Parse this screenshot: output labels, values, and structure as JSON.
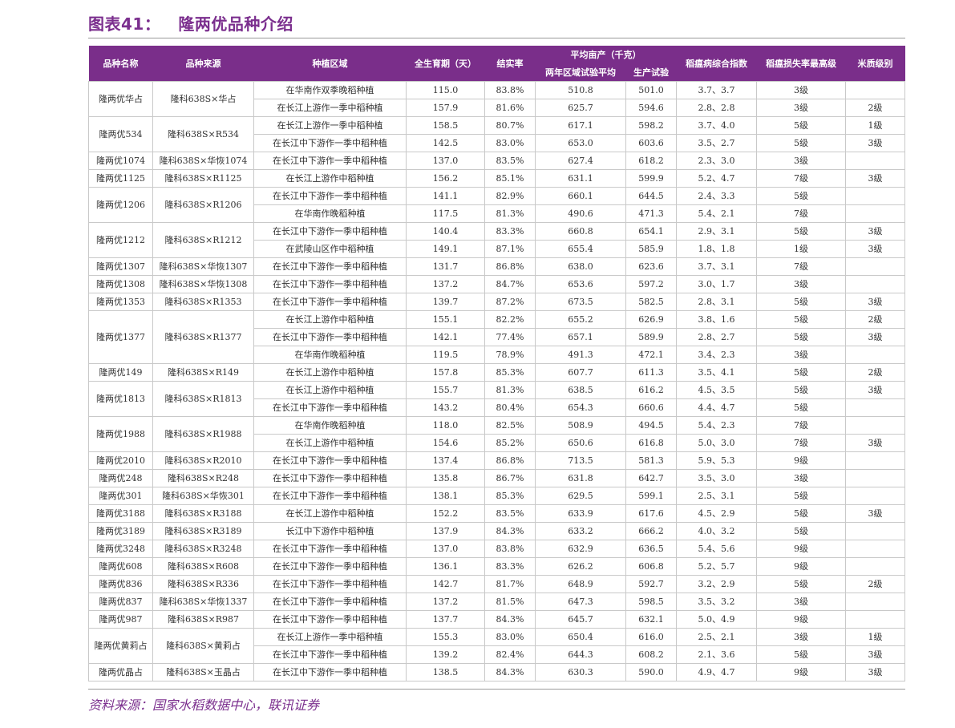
{
  "title": {
    "label": "图表41：",
    "text": "隆两优品种介绍"
  },
  "table": {
    "headers": {
      "variety": "品种名称",
      "origin": "品种来源",
      "region": "种植区域",
      "duration": "全生育期（天）",
      "seed_set": "结实率",
      "yield_group": "平均亩产（千克）",
      "yield_regional": "两年区域试验平均",
      "yield_production": "生产试验",
      "blast_index": "稻瘟病综合指数",
      "blast_loss": "稻瘟损失率最高级",
      "quality": "米质级别"
    },
    "groups": [
      {
        "variety": "隆两优华占",
        "origin": "隆科638S×华占",
        "rows": [
          {
            "region": "在华南作双季晚稻种植",
            "duration": "115.0",
            "seed_set": "83.8%",
            "yield_regional": "510.8",
            "yield_production": "501.0",
            "blast_index": "3.7、3.7",
            "blast_loss": "3级",
            "quality": ""
          },
          {
            "region": "在长江上游作一季中稻种植",
            "duration": "157.9",
            "seed_set": "81.6%",
            "yield_regional": "625.7",
            "yield_production": "594.6",
            "blast_index": "2.8、2.8",
            "blast_loss": "3级",
            "quality": "2级"
          }
        ]
      },
      {
        "variety": "隆两优534",
        "origin": "隆科638S×R534",
        "rows": [
          {
            "region": "在长江上游作一季中稻种植",
            "duration": "158.5",
            "seed_set": "80.7%",
            "yield_regional": "617.1",
            "yield_production": "598.2",
            "blast_index": "3.7、4.0",
            "blast_loss": "5级",
            "quality": "1级"
          },
          {
            "region": "在长江中下游作一季中稻种植",
            "duration": "142.5",
            "seed_set": "83.0%",
            "yield_regional": "653.0",
            "yield_production": "603.6",
            "blast_index": "3.5、2.7",
            "blast_loss": "5级",
            "quality": "3级"
          }
        ]
      },
      {
        "variety": "隆两优1074",
        "origin": "隆科638S×华恢1074",
        "rows": [
          {
            "region": "在长江中下游作一季中稻种植",
            "duration": "137.0",
            "seed_set": "83.5%",
            "yield_regional": "627.4",
            "yield_production": "618.2",
            "blast_index": "2.3、3.0",
            "blast_loss": "3级",
            "quality": ""
          }
        ]
      },
      {
        "variety": "隆两优1125",
        "origin": "隆科638S×R1125",
        "rows": [
          {
            "region": "在长江上游作中稻种植",
            "duration": "156.2",
            "seed_set": "85.1%",
            "yield_regional": "631.1",
            "yield_production": "599.9",
            "blast_index": "5.2、4.7",
            "blast_loss": "7级",
            "quality": "3级"
          }
        ]
      },
      {
        "variety": "隆两优1206",
        "origin": "隆科638S×R1206",
        "rows": [
          {
            "region": "在长江中下游作一季中稻种植",
            "duration": "141.1",
            "seed_set": "82.9%",
            "yield_regional": "660.1",
            "yield_production": "644.5",
            "blast_index": "2.4、3.3",
            "blast_loss": "5级",
            "quality": ""
          },
          {
            "region": "在华南作晚稻种植",
            "duration": "117.5",
            "seed_set": "81.3%",
            "yield_regional": "490.6",
            "yield_production": "471.3",
            "blast_index": "5.4、2.1",
            "blast_loss": "7级",
            "quality": ""
          }
        ]
      },
      {
        "variety": "隆两优1212",
        "origin": "隆科638S×R1212",
        "rows": [
          {
            "region": "在长江中下游作一季中稻种植",
            "duration": "140.4",
            "seed_set": "83.3%",
            "yield_regional": "660.8",
            "yield_production": "654.1",
            "blast_index": "2.9、3.1",
            "blast_loss": "5级",
            "quality": "3级"
          },
          {
            "region": "在武陵山区作中稻种植",
            "duration": "149.1",
            "seed_set": "87.1%",
            "yield_regional": "655.4",
            "yield_production": "585.9",
            "blast_index": "1.8、1.8",
            "blast_loss": "1级",
            "quality": "3级"
          }
        ]
      },
      {
        "variety": "隆两优1307",
        "origin": "隆科638S×华恢1307",
        "rows": [
          {
            "region": "在长江中下游作一季中稻种植",
            "duration": "131.7",
            "seed_set": "86.8%",
            "yield_regional": "638.0",
            "yield_production": "623.6",
            "blast_index": "3.7、3.1",
            "blast_loss": "7级",
            "quality": ""
          }
        ]
      },
      {
        "variety": "隆两优1308",
        "origin": "隆科638S×华恢1308",
        "rows": [
          {
            "region": "在长江中下游作一季中稻种植",
            "duration": "137.2",
            "seed_set": "84.7%",
            "yield_regional": "653.6",
            "yield_production": "597.2",
            "blast_index": "3.0、1.7",
            "blast_loss": "3级",
            "quality": ""
          }
        ]
      },
      {
        "variety": "隆两优1353",
        "origin": "隆科638S×R1353",
        "rows": [
          {
            "region": "在长江中下游作一季中稻种植",
            "duration": "139.7",
            "seed_set": "87.2%",
            "yield_regional": "673.5",
            "yield_production": "582.5",
            "blast_index": "2.8、3.1",
            "blast_loss": "5级",
            "quality": "3级"
          }
        ]
      },
      {
        "variety": "隆两优1377",
        "origin": "隆科638S×R1377",
        "rows": [
          {
            "region": "在长江上游作中稻种植",
            "duration": "155.1",
            "seed_set": "82.2%",
            "yield_regional": "655.2",
            "yield_production": "626.9",
            "blast_index": "3.8、1.6",
            "blast_loss": "5级",
            "quality": "2级"
          },
          {
            "region": "在长江中下游作一季中稻种植",
            "duration": "142.1",
            "seed_set": "77.4%",
            "yield_regional": "657.1",
            "yield_production": "589.9",
            "blast_index": "2.8、2.7",
            "blast_loss": "5级",
            "quality": "3级"
          },
          {
            "region": "在华南作晚稻种植",
            "duration": "119.5",
            "seed_set": "78.9%",
            "yield_regional": "491.3",
            "yield_production": "472.1",
            "blast_index": "3.4、2.3",
            "blast_loss": "3级",
            "quality": ""
          }
        ]
      },
      {
        "variety": "隆两优149",
        "origin": "隆科638S×R149",
        "rows": [
          {
            "region": "在长江上游作中稻种植",
            "duration": "157.8",
            "seed_set": "85.3%",
            "yield_regional": "607.7",
            "yield_production": "611.3",
            "blast_index": "3.5、4.1",
            "blast_loss": "5级",
            "quality": "2级"
          }
        ]
      },
      {
        "variety": "隆两优1813",
        "origin": "隆科638S×R1813",
        "rows": [
          {
            "region": "在长江上游作中稻种植",
            "duration": "155.7",
            "seed_set": "81.3%",
            "yield_regional": "638.5",
            "yield_production": "616.2",
            "blast_index": "4.5、3.5",
            "blast_loss": "5级",
            "quality": "3级"
          },
          {
            "region": "在长江中下游作一季中稻种植",
            "duration": "143.2",
            "seed_set": "80.4%",
            "yield_regional": "654.3",
            "yield_production": "660.6",
            "blast_index": "4.4、4.7",
            "blast_loss": "5级",
            "quality": ""
          }
        ]
      },
      {
        "variety": "隆两优1988",
        "origin": "隆科638S×R1988",
        "rows": [
          {
            "region": "在华南作晚稻种植",
            "duration": "118.0",
            "seed_set": "82.5%",
            "yield_regional": "508.9",
            "yield_production": "494.5",
            "blast_index": "5.4、2.3",
            "blast_loss": "7级",
            "quality": ""
          },
          {
            "region": "在长江上游作中稻种植",
            "duration": "154.6",
            "seed_set": "85.2%",
            "yield_regional": "650.6",
            "yield_production": "616.8",
            "blast_index": "5.0、3.0",
            "blast_loss": "7级",
            "quality": "3级"
          }
        ]
      },
      {
        "variety": "隆两优2010",
        "origin": "隆科638S×R2010",
        "rows": [
          {
            "region": "在长江中下游作一季中稻种植",
            "duration": "137.4",
            "seed_set": "86.8%",
            "yield_regional": "713.5",
            "yield_production": "581.3",
            "blast_index": "5.9、5.3",
            "blast_loss": "9级",
            "quality": ""
          }
        ]
      },
      {
        "variety": "隆两优248",
        "origin": "隆科638S×R248",
        "rows": [
          {
            "region": "在长江中下游作一季中稻种植",
            "duration": "135.8",
            "seed_set": "86.7%",
            "yield_regional": "631.8",
            "yield_production": "642.7",
            "blast_index": "3.5、3.0",
            "blast_loss": "3级",
            "quality": ""
          }
        ]
      },
      {
        "variety": "隆两优301",
        "origin": "隆科638S×华恢301",
        "rows": [
          {
            "region": "在长江中下游作一季中稻种植",
            "duration": "138.1",
            "seed_set": "85.3%",
            "yield_regional": "629.5",
            "yield_production": "599.1",
            "blast_index": "2.5、3.1",
            "blast_loss": "5级",
            "quality": ""
          }
        ]
      },
      {
        "variety": "隆两优3188",
        "origin": "隆科638S×R3188",
        "rows": [
          {
            "region": "在长江上游作中稻种植",
            "duration": "152.2",
            "seed_set": "83.5%",
            "yield_regional": "633.9",
            "yield_production": "617.6",
            "blast_index": "4.5、2.9",
            "blast_loss": "5级",
            "quality": "3级"
          }
        ]
      },
      {
        "variety": "隆两优3189",
        "origin": "隆科638S×R3189",
        "rows": [
          {
            "region": "长江中下游作中稻种植",
            "duration": "137.9",
            "seed_set": "84.3%",
            "yield_regional": "633.2",
            "yield_production": "666.2",
            "blast_index": "4.0、3.2",
            "blast_loss": "5级",
            "quality": ""
          }
        ]
      },
      {
        "variety": "隆两优3248",
        "origin": "隆科638S×R3248",
        "rows": [
          {
            "region": "在长江中下游作一季中稻种植",
            "duration": "137.0",
            "seed_set": "83.8%",
            "yield_regional": "632.9",
            "yield_production": "636.5",
            "blast_index": "5.4、5.6",
            "blast_loss": "9级",
            "quality": ""
          }
        ]
      },
      {
        "variety": "隆两优608",
        "origin": "隆科638S×R608",
        "rows": [
          {
            "region": "在长江中下游作一季中稻种植",
            "duration": "136.1",
            "seed_set": "83.3%",
            "yield_regional": "626.2",
            "yield_production": "606.8",
            "blast_index": "5.2、5.7",
            "blast_loss": "9级",
            "quality": ""
          }
        ]
      },
      {
        "variety": "隆两优836",
        "origin": "隆科638S×R336",
        "rows": [
          {
            "region": "在长江中下游作一季中稻种植",
            "duration": "142.7",
            "seed_set": "81.7%",
            "yield_regional": "648.9",
            "yield_production": "592.7",
            "blast_index": "3.2、2.9",
            "blast_loss": "5级",
            "quality": "2级"
          }
        ]
      },
      {
        "variety": "隆两优837",
        "origin": "隆科638S×华恢1337",
        "rows": [
          {
            "region": "在长江中下游作一季中稻种植",
            "duration": "137.2",
            "seed_set": "81.5%",
            "yield_regional": "647.3",
            "yield_production": "598.5",
            "blast_index": "3.5、3.2",
            "blast_loss": "3级",
            "quality": ""
          }
        ]
      },
      {
        "variety": "隆两优987",
        "origin": "隆科638S×R987",
        "rows": [
          {
            "region": "在长江中下游作一季中稻种植",
            "duration": "137.7",
            "seed_set": "84.3%",
            "yield_regional": "645.7",
            "yield_production": "632.1",
            "blast_index": "5.0、4.9",
            "blast_loss": "9级",
            "quality": ""
          }
        ]
      },
      {
        "variety": "隆两优黄莉占",
        "origin": "隆科638S×黄莉占",
        "rows": [
          {
            "region": "在长江上游作一季中稻种植",
            "duration": "155.3",
            "seed_set": "83.0%",
            "yield_regional": "650.4",
            "yield_production": "616.0",
            "blast_index": "2.5、2.1",
            "blast_loss": "3级",
            "quality": "1级"
          },
          {
            "region": "在长江中下游作一季中稻种植",
            "duration": "139.2",
            "seed_set": "82.4%",
            "yield_regional": "644.3",
            "yield_production": "608.2",
            "blast_index": "2.1、3.6",
            "blast_loss": "5级",
            "quality": "3级"
          }
        ]
      },
      {
        "variety": "隆两优晶占",
        "origin": "隆科638S×玉晶占",
        "rows": [
          {
            "region": "在长江中下游作一季中稻种植",
            "duration": "138.5",
            "seed_set": "84.3%",
            "yield_regional": "630.3",
            "yield_production": "590.0",
            "blast_index": "4.9、4.7",
            "blast_loss": "9级",
            "quality": "3级"
          }
        ]
      }
    ]
  },
  "source": "资料来源：国家水稻数据中心，联讯证券"
}
